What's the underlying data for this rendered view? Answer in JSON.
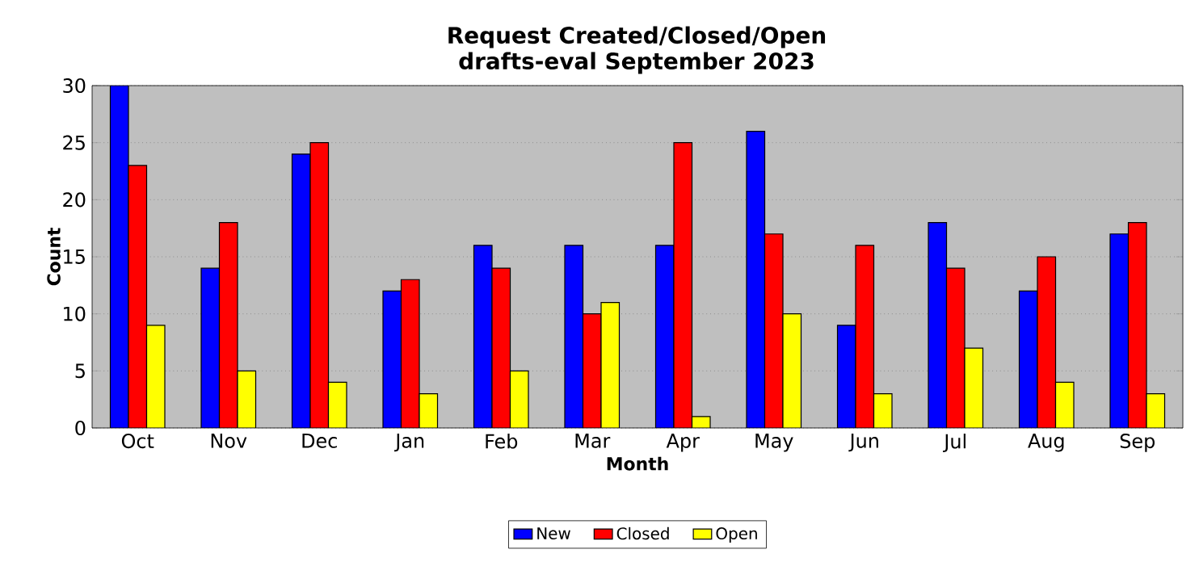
{
  "chart_data": {
    "type": "bar",
    "title": "Request Created/Closed/Open",
    "subtitle": "drafts-eval September 2023",
    "xlabel": "Month",
    "ylabel": "Count",
    "categories": [
      "Oct",
      "Nov",
      "Dec",
      "Jan",
      "Feb",
      "Mar",
      "Apr",
      "May",
      "Jun",
      "Jul",
      "Aug",
      "Sep"
    ],
    "series": [
      {
        "name": "New",
        "color": "#0000ff",
        "values": [
          30,
          14,
          24,
          12,
          16,
          16,
          16,
          26,
          9,
          18,
          12,
          17
        ]
      },
      {
        "name": "Closed",
        "color": "#ff0000",
        "values": [
          23,
          18,
          25,
          13,
          14,
          10,
          25,
          17,
          16,
          14,
          15,
          18
        ]
      },
      {
        "name": "Open",
        "color": "#ffff00",
        "values": [
          9,
          5,
          4,
          3,
          5,
          11,
          1,
          10,
          3,
          7,
          4,
          3
        ]
      }
    ],
    "ylim": [
      0,
      30
    ],
    "yticks": [
      0,
      5,
      10,
      15,
      20,
      25,
      30
    ],
    "grid": "y",
    "legend": "bottom"
  }
}
